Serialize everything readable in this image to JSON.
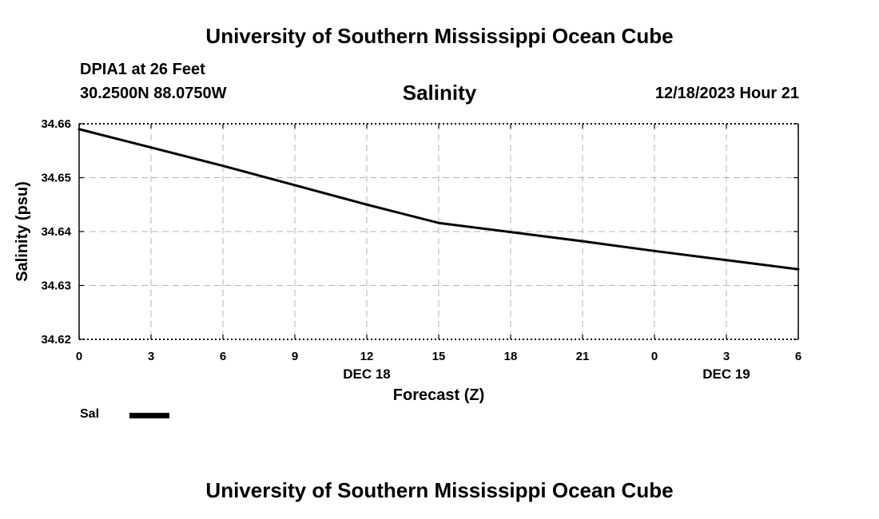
{
  "page": {
    "title_top": "University of Southern Mississippi Ocean Cube",
    "title_bottom": "University of Southern Mississippi Ocean Cube",
    "station": "DPIA1 at 26 Feet",
    "coords": "30.2500N  88.0750W",
    "datetime": "12/18/2023 Hour 21"
  },
  "chart_data": {
    "type": "line",
    "title": "Salinity",
    "xlabel": "Forecast (Z)",
    "ylabel": "Salinity (psu)",
    "x_ticks": [
      "0",
      "3",
      "6",
      "9",
      "12",
      "15",
      "18",
      "21",
      "0",
      "3",
      "6"
    ],
    "date_labels": [
      {
        "label": "DEC 18",
        "at_tick": 4
      },
      {
        "label": "DEC 19",
        "at_tick": 9
      }
    ],
    "y_ticks": [
      "34.66",
      "34.65",
      "34.64",
      "34.63",
      "34.62"
    ],
    "ylim": [
      34.62,
      34.66
    ],
    "xlim": [
      0,
      30
    ],
    "grid": true,
    "legend_position": "bottom-left",
    "series": [
      {
        "name": "Sal",
        "color": "#000000",
        "x": [
          0,
          3,
          6,
          9,
          12,
          15,
          18,
          21,
          24,
          27,
          30
        ],
        "values": [
          34.659,
          34.6556,
          34.6522,
          34.6486,
          34.645,
          34.6416,
          34.6399,
          34.6382,
          34.6364,
          34.6347,
          34.633
        ]
      }
    ]
  }
}
